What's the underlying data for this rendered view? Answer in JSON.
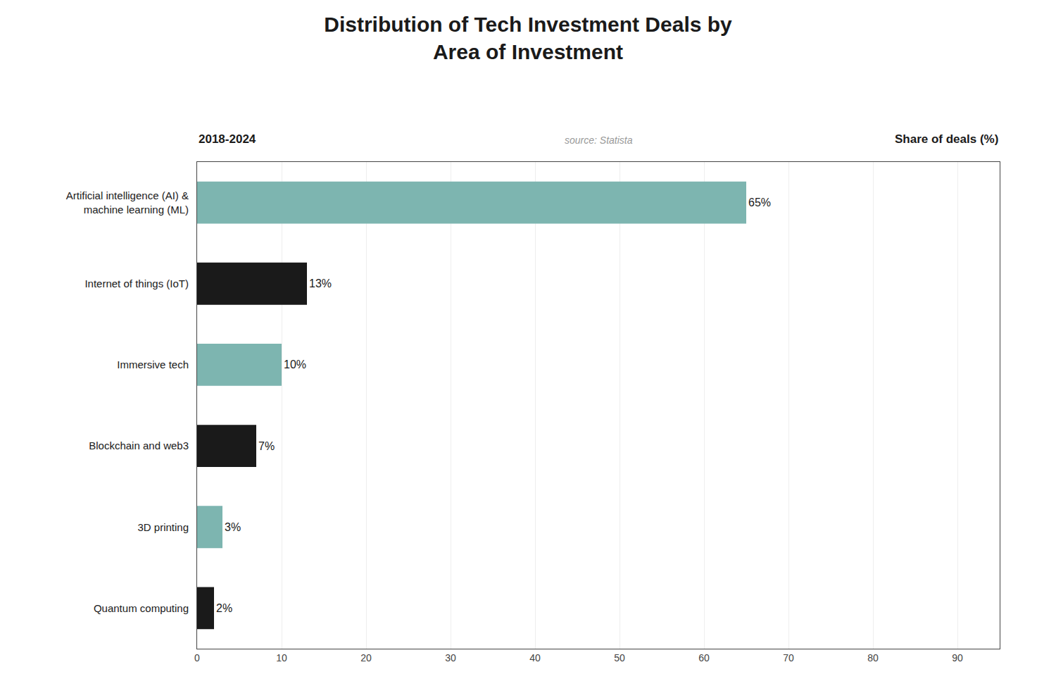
{
  "chart_data": {
    "type": "bar",
    "orientation": "horizontal",
    "title": "Distribution of Tech Investment Deals by\nArea of Investment",
    "subtitle": "2018-2024",
    "annotations": [
      "source: Statista"
    ],
    "xlabel": "Share of deals (%)",
    "categories": [
      "Artificial intelligence (AI) &\nmachine learning (ML)",
      "Internet of things (IoT)",
      "Immersive tech",
      "Blockchain and web3",
      "3D printing",
      "Quantum computing"
    ],
    "values": [
      65,
      13,
      10,
      7,
      3,
      2
    ],
    "value_labels": [
      "65%",
      "13%",
      "10%",
      "7%",
      "3%",
      "2%"
    ],
    "data_labels": true,
    "colors": [
      "#7db5b0",
      "#1a1a1a",
      "#7db5b0",
      "#1a1a1a",
      "#7db5b0",
      "#1a1a1a"
    ],
    "xlim": [
      0,
      95
    ],
    "xticks": [
      0,
      10,
      20,
      30,
      40,
      50,
      60,
      70,
      80,
      90
    ],
    "grid": true
  }
}
